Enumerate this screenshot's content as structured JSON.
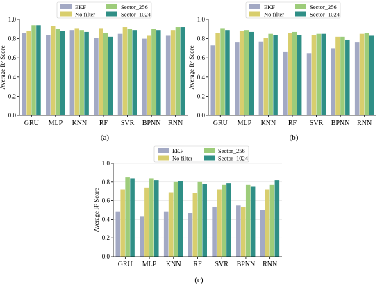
{
  "figure": {
    "legend_labels": [
      "EKF",
      "No filter",
      "Sector_256",
      "Sector_1024"
    ],
    "colors": [
      "#a3a9c4",
      "#d8ce6e",
      "#9dcc7a",
      "#2f8f86"
    ],
    "panel_labels": [
      "(a)",
      "(b)",
      "(c)"
    ]
  },
  "chart_data": [
    {
      "type": "bar",
      "panel_label": "(a)",
      "categories": [
        "GRU",
        "MLP",
        "KNN",
        "RF",
        "SVR",
        "BPNN",
        "RNN"
      ],
      "series": [
        {
          "name": "EKF",
          "values": [
            0.86,
            0.84,
            0.89,
            0.81,
            0.85,
            0.8,
            0.83
          ]
        },
        {
          "name": "No filter",
          "values": [
            0.88,
            0.93,
            0.91,
            0.91,
            0.92,
            0.83,
            0.89
          ]
        },
        {
          "name": "Sector_256",
          "values": [
            0.94,
            0.9,
            0.89,
            0.86,
            0.9,
            0.9,
            0.92
          ]
        },
        {
          "name": "Sector_1024",
          "values": [
            0.94,
            0.88,
            0.87,
            0.82,
            0.89,
            0.89,
            0.92
          ]
        }
      ],
      "ylabel": "Average R² Score",
      "ylim": [
        0,
        1.0
      ],
      "yticks": [
        "0.0",
        "0.2",
        "0.4",
        "0.6",
        "0.8",
        "1.0"
      ],
      "legend": "top-center",
      "grid": false
    },
    {
      "type": "bar",
      "panel_label": "(b)",
      "categories": [
        "GRU",
        "MLP",
        "KNN",
        "RF",
        "SVR",
        "BPNN",
        "RNN"
      ],
      "series": [
        {
          "name": "EKF",
          "values": [
            0.73,
            0.76,
            0.77,
            0.66,
            0.65,
            0.7,
            0.76
          ]
        },
        {
          "name": "No filter",
          "values": [
            0.86,
            0.88,
            0.81,
            0.86,
            0.84,
            0.82,
            0.85
          ]
        },
        {
          "name": "Sector_256",
          "values": [
            0.91,
            0.89,
            0.85,
            0.87,
            0.85,
            0.82,
            0.86
          ]
        },
        {
          "name": "Sector_1024",
          "values": [
            0.89,
            0.87,
            0.84,
            0.84,
            0.85,
            0.79,
            0.83
          ]
        }
      ],
      "ylabel": "Average R² Score",
      "ylim": [
        0,
        1.0
      ],
      "yticks": [
        "0.0",
        "0.2",
        "0.4",
        "0.6",
        "0.8",
        "1.0"
      ],
      "legend": "top-center",
      "grid": false
    },
    {
      "type": "bar",
      "panel_label": "(c)",
      "categories": [
        "GRU",
        "MLP",
        "KNN",
        "RF",
        "SVR",
        "BPNN",
        "RNN"
      ],
      "series": [
        {
          "name": "EKF",
          "values": [
            0.48,
            0.43,
            0.48,
            0.47,
            0.53,
            0.55,
            0.5
          ]
        },
        {
          "name": "No filter",
          "values": [
            0.72,
            0.74,
            0.69,
            0.68,
            0.72,
            0.53,
            0.72
          ]
        },
        {
          "name": "Sector_256",
          "values": [
            0.85,
            0.84,
            0.8,
            0.8,
            0.77,
            0.77,
            0.77
          ]
        },
        {
          "name": "Sector_1024",
          "values": [
            0.84,
            0.82,
            0.81,
            0.78,
            0.79,
            0.75,
            0.82
          ]
        }
      ],
      "ylabel": "Average R² Score",
      "ylim": [
        0,
        1.0
      ],
      "yticks": [
        "0.0",
        "0.2",
        "0.4",
        "0.6",
        "0.8",
        "1.0"
      ],
      "legend": "top-center",
      "grid": true
    }
  ]
}
